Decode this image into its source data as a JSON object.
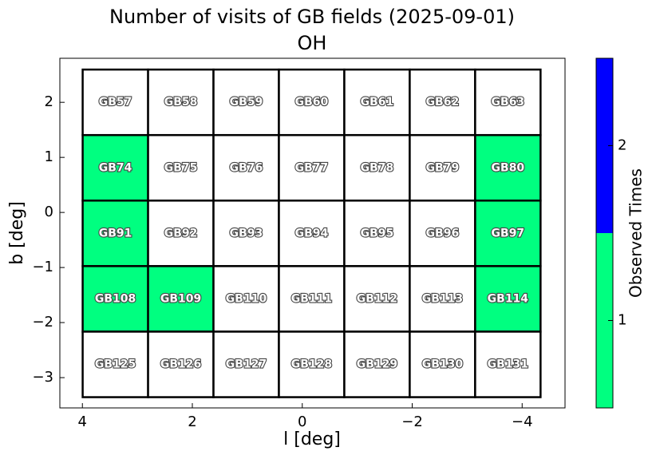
{
  "chart_data": {
    "type": "heatmap",
    "title": "Number of visits of GB fields (2025-09-01)",
    "subtitle": "OH",
    "xlabel": "l [deg]",
    "ylabel": "b [deg]",
    "xlim": [
      4.41,
      -4.78
    ],
    "ylim": [
      -3.55,
      2.8
    ],
    "xticks": [
      4,
      2,
      0,
      {
        "value": -2,
        "label": "−2"
      },
      {
        "value": -4,
        "label": "−4"
      }
    ],
    "yticks": [
      2,
      1,
      0,
      {
        "value": -1,
        "label": "−1"
      },
      {
        "value": -2,
        "label": "−2"
      },
      {
        "value": -3,
        "label": "−3"
      }
    ],
    "cell_size": [
      1.19,
      1.19
    ],
    "under_color": "#ffffff",
    "fields": [
      {
        "name": "GB57",
        "l": 3.4,
        "b": 2.0,
        "value": 0
      },
      {
        "name": "GB58",
        "l": 2.21,
        "b": 2.0,
        "value": 0
      },
      {
        "name": "GB59",
        "l": 1.02,
        "b": 2.0,
        "value": 0
      },
      {
        "name": "GB60",
        "l": -0.17,
        "b": 2.0,
        "value": 0
      },
      {
        "name": "GB61",
        "l": -1.36,
        "b": 2.0,
        "value": 0
      },
      {
        "name": "GB62",
        "l": -2.55,
        "b": 2.0,
        "value": 0
      },
      {
        "name": "GB63",
        "l": -3.74,
        "b": 2.0,
        "value": 0
      },
      {
        "name": "GB74",
        "l": 3.4,
        "b": 0.81,
        "value": 1
      },
      {
        "name": "GB75",
        "l": 2.21,
        "b": 0.81,
        "value": 0
      },
      {
        "name": "GB76",
        "l": 1.02,
        "b": 0.81,
        "value": 0
      },
      {
        "name": "GB77",
        "l": -0.17,
        "b": 0.81,
        "value": 0
      },
      {
        "name": "GB78",
        "l": -1.36,
        "b": 0.81,
        "value": 0
      },
      {
        "name": "GB79",
        "l": -2.55,
        "b": 0.81,
        "value": 0
      },
      {
        "name": "GB80",
        "l": -3.74,
        "b": 0.81,
        "value": 1
      },
      {
        "name": "GB91",
        "l": 3.4,
        "b": -0.38,
        "value": 1
      },
      {
        "name": "GB92",
        "l": 2.21,
        "b": -0.38,
        "value": 0
      },
      {
        "name": "GB93",
        "l": 1.02,
        "b": -0.38,
        "value": 0
      },
      {
        "name": "GB94",
        "l": -0.17,
        "b": -0.38,
        "value": 0
      },
      {
        "name": "GB95",
        "l": -1.36,
        "b": -0.38,
        "value": 0
      },
      {
        "name": "GB96",
        "l": -2.55,
        "b": -0.38,
        "value": 0
      },
      {
        "name": "GB97",
        "l": -3.74,
        "b": -0.38,
        "value": 1
      },
      {
        "name": "GB108",
        "l": 3.4,
        "b": -1.57,
        "value": 1
      },
      {
        "name": "GB109",
        "l": 2.21,
        "b": -1.57,
        "value": 1
      },
      {
        "name": "GB110",
        "l": 1.02,
        "b": -1.57,
        "value": 0
      },
      {
        "name": "GB111",
        "l": -0.17,
        "b": -1.57,
        "value": 0
      },
      {
        "name": "GB112",
        "l": -1.36,
        "b": -1.57,
        "value": 0
      },
      {
        "name": "GB113",
        "l": -2.55,
        "b": -1.57,
        "value": 0
      },
      {
        "name": "GB114",
        "l": -3.74,
        "b": -1.57,
        "value": 1
      },
      {
        "name": "GB125",
        "l": 3.4,
        "b": -2.76,
        "value": 0
      },
      {
        "name": "GB126",
        "l": 2.21,
        "b": -2.76,
        "value": 0
      },
      {
        "name": "GB127",
        "l": 1.02,
        "b": -2.76,
        "value": 0
      },
      {
        "name": "GB128",
        "l": -0.17,
        "b": -2.76,
        "value": 0
      },
      {
        "name": "GB129",
        "l": -1.36,
        "b": -2.76,
        "value": 0
      },
      {
        "name": "GB130",
        "l": -2.55,
        "b": -2.76,
        "value": 0
      },
      {
        "name": "GB131",
        "l": -3.74,
        "b": -2.76,
        "value": 0
      }
    ],
    "colorbar": {
      "label": "Observed Times",
      "lim": [
        0.5,
        2.5
      ],
      "ticks": [
        1,
        2
      ],
      "bounds": [
        0.5,
        1.5,
        2.5
      ],
      "colors": [
        "#00ff80",
        "#0000ff"
      ]
    }
  }
}
